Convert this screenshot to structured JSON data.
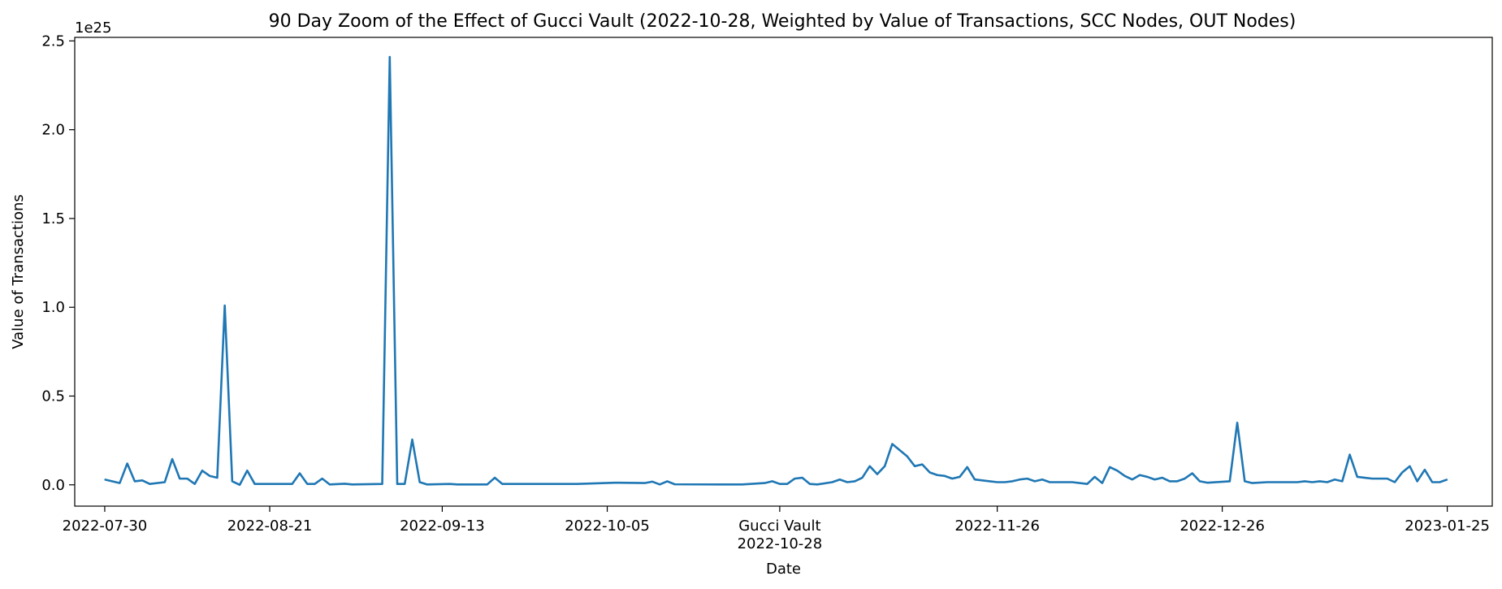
{
  "chart_data": {
    "type": "line",
    "title": "90 Day Zoom of the Effect of Gucci Vault (2022-10-28, Weighted by Value of Transactions, SCC Nodes, OUT Nodes)",
    "xlabel": "Date",
    "ylabel": "Value of Transactions",
    "y_offset_text": "1e25",
    "y_scale_multiplier": 1e+25,
    "ylim": [
      -0.12,
      2.52
    ],
    "yticks": [
      0.0,
      0.5,
      1.0,
      1.5,
      2.0,
      2.5
    ],
    "ytick_labels": [
      "0.0",
      "0.5",
      "1.0",
      "1.5",
      "2.0",
      "2.5"
    ],
    "xlim": [
      "2022-07-26",
      "2023-01-31"
    ],
    "xticks": [
      "2022-07-30",
      "2022-08-21",
      "2022-09-13",
      "2022-10-05",
      "2022-10-28",
      "2022-11-26",
      "2022-12-26",
      "2023-01-25"
    ],
    "xtick_labels": [
      [
        "2022-07-30"
      ],
      [
        "2022-08-21"
      ],
      [
        "2022-09-13"
      ],
      [
        "2022-10-05"
      ],
      [
        "Gucci Vault",
        "2022-10-28"
      ],
      [
        "2022-11-26"
      ],
      [
        "2022-12-26"
      ],
      [
        "2023-01-25"
      ]
    ],
    "grid": false,
    "series": [
      {
        "color": "#1f77b4",
        "points": [
          [
            "2022-07-30",
            0.03
          ],
          [
            "2022-08-01",
            0.01
          ],
          [
            "2022-08-02",
            0.12
          ],
          [
            "2022-08-03",
            0.02
          ],
          [
            "2022-08-04",
            0.025
          ],
          [
            "2022-08-05",
            0.005
          ],
          [
            "2022-08-07",
            0.015
          ],
          [
            "2022-08-08",
            0.145
          ],
          [
            "2022-08-09",
            0.035
          ],
          [
            "2022-08-10",
            0.035
          ],
          [
            "2022-08-11",
            0.005
          ],
          [
            "2022-08-12",
            0.08
          ],
          [
            "2022-08-13",
            0.05
          ],
          [
            "2022-08-14",
            0.04
          ],
          [
            "2022-08-15",
            1.01
          ],
          [
            "2022-08-16",
            0.02
          ],
          [
            "2022-08-17",
            0.0
          ],
          [
            "2022-08-18",
            0.08
          ],
          [
            "2022-08-19",
            0.005
          ],
          [
            "2022-08-21",
            0.005
          ],
          [
            "2022-08-24",
            0.005
          ],
          [
            "2022-08-25",
            0.065
          ],
          [
            "2022-08-26",
            0.005
          ],
          [
            "2022-08-27",
            0.005
          ],
          [
            "2022-08-28",
            0.035
          ],
          [
            "2022-08-29",
            0.002
          ],
          [
            "2022-08-31",
            0.006
          ],
          [
            "2022-09-01",
            0.002
          ],
          [
            "2022-09-05",
            0.005
          ],
          [
            "2022-09-06",
            2.41
          ],
          [
            "2022-09-07",
            0.005
          ],
          [
            "2022-09-08",
            0.005
          ],
          [
            "2022-09-09",
            0.255
          ],
          [
            "2022-09-10",
            0.015
          ],
          [
            "2022-09-11",
            0.002
          ],
          [
            "2022-09-14",
            0.005
          ],
          [
            "2022-09-15",
            0.002
          ],
          [
            "2022-09-19",
            0.002
          ],
          [
            "2022-09-20",
            0.04
          ],
          [
            "2022-09-21",
            0.005
          ],
          [
            "2022-09-24",
            0.005
          ],
          [
            "2022-09-27",
            0.005
          ],
          [
            "2022-10-01",
            0.005
          ],
          [
            "2022-10-06",
            0.012
          ],
          [
            "2022-10-10",
            0.01
          ],
          [
            "2022-10-11",
            0.018
          ],
          [
            "2022-10-12",
            0.002
          ],
          [
            "2022-10-13",
            0.02
          ],
          [
            "2022-10-14",
            0.003
          ],
          [
            "2022-10-20",
            0.002
          ],
          [
            "2022-10-23",
            0.002
          ],
          [
            "2022-10-26",
            0.01
          ],
          [
            "2022-10-27",
            0.02
          ],
          [
            "2022-10-28",
            0.005
          ],
          [
            "2022-10-29",
            0.005
          ],
          [
            "2022-10-30",
            0.035
          ],
          [
            "2022-10-31",
            0.04
          ],
          [
            "2022-11-01",
            0.005
          ],
          [
            "2022-11-02",
            0.002
          ],
          [
            "2022-11-04",
            0.015
          ],
          [
            "2022-11-05",
            0.03
          ],
          [
            "2022-11-06",
            0.015
          ],
          [
            "2022-11-07",
            0.02
          ],
          [
            "2022-11-08",
            0.04
          ],
          [
            "2022-11-09",
            0.105
          ],
          [
            "2022-11-10",
            0.06
          ],
          [
            "2022-11-11",
            0.105
          ],
          [
            "2022-11-12",
            0.23
          ],
          [
            "2022-11-13",
            0.195
          ],
          [
            "2022-11-14",
            0.16
          ],
          [
            "2022-11-15",
            0.105
          ],
          [
            "2022-11-16",
            0.115
          ],
          [
            "2022-11-17",
            0.07
          ],
          [
            "2022-11-18",
            0.055
          ],
          [
            "2022-11-19",
            0.05
          ],
          [
            "2022-11-20",
            0.035
          ],
          [
            "2022-11-21",
            0.045
          ],
          [
            "2022-11-22",
            0.1
          ],
          [
            "2022-11-23",
            0.03
          ],
          [
            "2022-11-24",
            0.025
          ],
          [
            "2022-11-25",
            0.02
          ],
          [
            "2022-11-26",
            0.015
          ],
          [
            "2022-11-27",
            0.015
          ],
          [
            "2022-11-28",
            0.02
          ],
          [
            "2022-11-29",
            0.03
          ],
          [
            "2022-11-30",
            0.035
          ],
          [
            "2022-12-01",
            0.02
          ],
          [
            "2022-12-02",
            0.03
          ],
          [
            "2022-12-03",
            0.015
          ],
          [
            "2022-12-06",
            0.015
          ],
          [
            "2022-12-08",
            0.005
          ],
          [
            "2022-12-09",
            0.045
          ],
          [
            "2022-12-10",
            0.01
          ],
          [
            "2022-12-11",
            0.1
          ],
          [
            "2022-12-12",
            0.08
          ],
          [
            "2022-12-13",
            0.05
          ],
          [
            "2022-12-14",
            0.03
          ],
          [
            "2022-12-15",
            0.055
          ],
          [
            "2022-12-16",
            0.045
          ],
          [
            "2022-12-17",
            0.03
          ],
          [
            "2022-12-18",
            0.04
          ],
          [
            "2022-12-19",
            0.02
          ],
          [
            "2022-12-20",
            0.02
          ],
          [
            "2022-12-21",
            0.035
          ],
          [
            "2022-12-22",
            0.065
          ],
          [
            "2022-12-23",
            0.02
          ],
          [
            "2022-12-24",
            0.012
          ],
          [
            "2022-12-27",
            0.02
          ],
          [
            "2022-12-28",
            0.35
          ],
          [
            "2022-12-29",
            0.02
          ],
          [
            "2022-12-30",
            0.01
          ],
          [
            "2023-01-01",
            0.015
          ],
          [
            "2023-01-05",
            0.015
          ],
          [
            "2023-01-06",
            0.02
          ],
          [
            "2023-01-07",
            0.015
          ],
          [
            "2023-01-08",
            0.02
          ],
          [
            "2023-01-09",
            0.015
          ],
          [
            "2023-01-10",
            0.03
          ],
          [
            "2023-01-11",
            0.02
          ],
          [
            "2023-01-12",
            0.17
          ],
          [
            "2023-01-13",
            0.045
          ],
          [
            "2023-01-14",
            0.04
          ],
          [
            "2023-01-15",
            0.035
          ],
          [
            "2023-01-17",
            0.035
          ],
          [
            "2023-01-18",
            0.015
          ],
          [
            "2023-01-19",
            0.07
          ],
          [
            "2023-01-20",
            0.105
          ],
          [
            "2023-01-21",
            0.02
          ],
          [
            "2023-01-22",
            0.085
          ],
          [
            "2023-01-23",
            0.015
          ],
          [
            "2023-01-24",
            0.015
          ],
          [
            "2023-01-25",
            0.03
          ]
        ]
      }
    ]
  }
}
